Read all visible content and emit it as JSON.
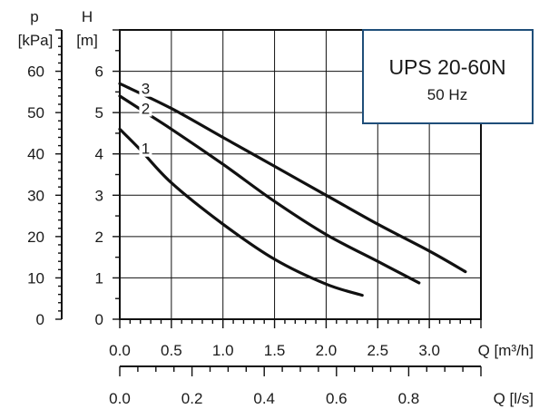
{
  "chart_data": {
    "type": "line",
    "title": "UPS 20-60N",
    "subtitle": "50 Hz",
    "x_axis": {
      "label": "Q [m³/h]",
      "range": [
        0,
        3.5
      ],
      "ticks": [
        "0.0",
        "0.5",
        "1.0",
        "1.5",
        "2.0",
        "2.5",
        "3.0"
      ]
    },
    "x2_axis": {
      "label": "Q [l/s]",
      "range": [
        0,
        1.0
      ],
      "ticks": [
        "0.0",
        "0.2",
        "0.4",
        "0.6",
        "0.8"
      ]
    },
    "y_axis": {
      "label_symbol": "H",
      "label_unit": "[m]",
      "range": [
        0,
        7
      ],
      "ticks": [
        "0",
        "1",
        "2",
        "3",
        "4",
        "5",
        "6"
      ]
    },
    "y2_axis": {
      "label_symbol": "p",
      "label_unit": "[kPa]",
      "range": [
        0,
        70
      ],
      "ticks": [
        "0",
        "10",
        "20",
        "30",
        "40",
        "50",
        "60"
      ]
    },
    "grid": true,
    "series": [
      {
        "name": "1",
        "x": [
          0.0,
          0.2,
          0.5,
          1.0,
          1.5,
          2.0,
          2.35
        ],
        "y": [
          4.6,
          4.1,
          3.3,
          2.3,
          1.45,
          0.85,
          0.58
        ]
      },
      {
        "name": "2",
        "x": [
          0.0,
          0.2,
          0.5,
          1.0,
          1.5,
          2.0,
          2.5,
          2.9
        ],
        "y": [
          5.4,
          5.08,
          4.6,
          3.75,
          2.85,
          2.05,
          1.4,
          0.88
        ]
      },
      {
        "name": "3",
        "x": [
          0.0,
          0.5,
          1.0,
          1.5,
          2.0,
          2.5,
          3.0,
          3.35
        ],
        "y": [
          5.7,
          5.1,
          4.4,
          3.7,
          3.0,
          2.3,
          1.65,
          1.15
        ]
      }
    ]
  }
}
